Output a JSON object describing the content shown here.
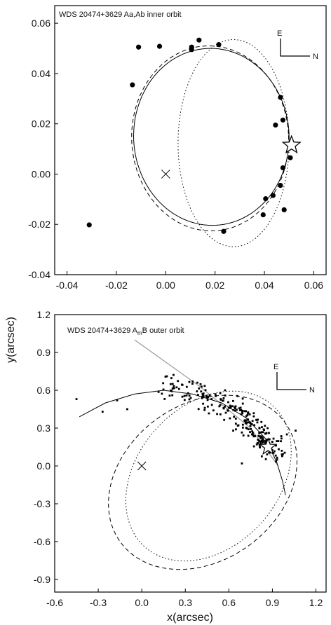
{
  "chart_data": [
    {
      "type": "scatter",
      "title": "WDS 20474+3629 Aa,Ab   inner orbit",
      "xlabel": "",
      "ylabel": "",
      "xlim": [
        -0.045,
        0.065
      ],
      "ylim": [
        -0.04,
        0.067
      ],
      "xticks": [
        "-0.04",
        "-0.02",
        "0.00",
        "0.02",
        "0.04",
        "0.06"
      ],
      "yticks": [
        "-0.04",
        "-0.02",
        "0.00",
        "0.02",
        "0.04",
        "0.06"
      ],
      "orientation": {
        "E": "E",
        "N": "N"
      },
      "center": {
        "x": 0.0,
        "y": 0.0,
        "marker": "cross"
      },
      "star": {
        "x": 0.051,
        "y": 0.0115
      },
      "points": [
        [
          -0.011,
          0.0505
        ],
        [
          -0.0025,
          0.0508
        ],
        [
          0.0105,
          0.0505
        ],
        [
          0.0105,
          0.0495
        ],
        [
          0.0135,
          0.0533
        ],
        [
          0.0215,
          0.0515
        ],
        [
          -0.0135,
          0.0355
        ],
        [
          0.0465,
          0.0305
        ],
        [
          0.0475,
          0.0215
        ],
        [
          0.0445,
          0.0195
        ],
        [
          0.0505,
          0.0065
        ],
        [
          0.0475,
          0.0025
        ],
        [
          0.0465,
          -0.0045
        ],
        [
          0.0435,
          -0.0085
        ],
        [
          0.0405,
          -0.0098
        ],
        [
          0.048,
          -0.0142
        ],
        [
          0.0395,
          -0.0162
        ],
        [
          0.0235,
          -0.0228
        ],
        [
          -0.031,
          -0.0202
        ]
      ],
      "orbits": [
        {
          "style": "solid",
          "cx": 0.0185,
          "cy": 0.0148,
          "a": 0.0315,
          "b": 0.0352,
          "tilt": 3
        },
        {
          "style": "dashed",
          "cx": 0.018,
          "cy": 0.0142,
          "a": 0.0318,
          "b": 0.0368,
          "tilt": 3
        },
        {
          "style": "dotted",
          "cx": 0.0275,
          "cy": 0.0123,
          "a": 0.0225,
          "b": 0.0412,
          "tilt": 0
        }
      ]
    },
    {
      "type": "scatter",
      "title": "WDS 20474+3629 AmB   outer orbit",
      "title_parts": {
        "pre": "WDS 20474+3629 A",
        "sub": "m",
        "post": "B   outer orbit"
      },
      "xlabel": "x(arcsec)",
      "ylabel": "y(arcsec)",
      "xlim": [
        -0.6,
        1.27
      ],
      "ylim": [
        -1.0,
        1.2
      ],
      "xticks": [
        "-0.6",
        "-0.3",
        "0.0",
        "0.3",
        "0.6",
        "0.9",
        "1.2"
      ],
      "yticks": [
        "-0.9",
        "-0.6",
        "-0.3",
        "0.0",
        "0.3",
        "0.6",
        "0.9",
        "1.2"
      ],
      "orientation": {
        "E": "E",
        "N": "N"
      },
      "center": {
        "x": 0.0,
        "y": 0.0,
        "marker": "cross"
      },
      "star": {
        "x": 0.87,
        "y": 0.15
      },
      "cloud": {
        "path": [
          [
            0.15,
            0.66
          ],
          [
            0.4,
            0.56
          ],
          [
            0.6,
            0.46
          ],
          [
            0.75,
            0.34
          ],
          [
            0.85,
            0.22
          ],
          [
            0.92,
            0.12
          ]
        ],
        "spread": 0.08,
        "count": 250,
        "outliers": [
          [
            -0.45,
            0.53
          ],
          [
            -0.17,
            0.52
          ],
          [
            -0.27,
            0.43
          ],
          [
            -0.1,
            0.45
          ],
          [
            1.06,
            0.28
          ],
          [
            1.0,
            0.25
          ],
          [
            0.69,
            0.02
          ],
          [
            0.63,
            0.28
          ]
        ]
      },
      "orbits": [
        {
          "style": "solid",
          "points": [
            [
              -0.43,
              0.39
            ],
            [
              -0.25,
              0.5
            ],
            [
              -0.05,
              0.57
            ],
            [
              0.15,
              0.6
            ],
            [
              0.35,
              0.57
            ],
            [
              0.55,
              0.5
            ],
            [
              0.72,
              0.38
            ],
            [
              0.85,
              0.22
            ],
            [
              0.93,
              0.03
            ],
            [
              0.97,
              -0.12
            ],
            [
              0.99,
              -0.23
            ]
          ]
        },
        {
          "style": "dashed",
          "cx": 0.42,
          "cy": -0.13,
          "a": 0.58,
          "b": 0.75,
          "tilt": -38
        },
        {
          "style": "dotted",
          "cx": 0.46,
          "cy": -0.08,
          "a": 0.51,
          "b": 0.72,
          "tilt": -30
        }
      ],
      "trend": {
        "points": [
          [
            -0.05,
            1.0
          ],
          [
            0.4,
            0.63
          ],
          [
            0.75,
            0.3
          ],
          [
            0.94,
            0.0
          ]
        ]
      }
    }
  ]
}
